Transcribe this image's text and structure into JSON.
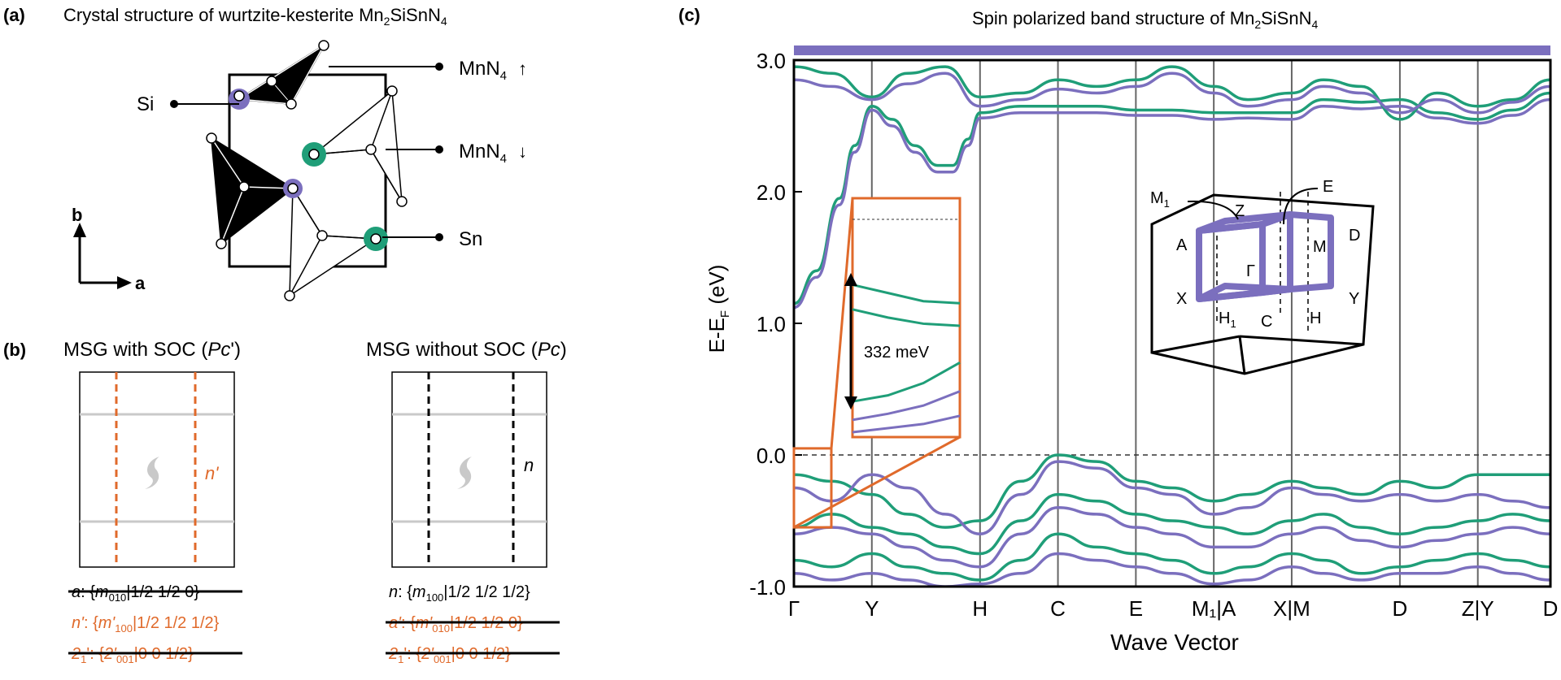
{
  "colors": {
    "up": "#1f9e78",
    "down": "#7b6fbe",
    "orange": "#e06a2b",
    "grey": "#c9c9c9",
    "black": "#000000"
  },
  "panel_a": {
    "label": "(a)",
    "title": "Crystal structure of wurtzite-kesterite Mn",
    "title_sub": "2",
    "title_end": "SiSnN",
    "title_sub2": "4",
    "labels": {
      "mn_up": "MnN",
      "mn_up_sub": "4",
      "mn_up_arrow": "↑",
      "mn_down": "MnN",
      "mn_down_sub": "4",
      "mn_down_arrow": "↓",
      "si": "Si",
      "sn": "Sn",
      "axis_b": "b",
      "axis_a": "a"
    }
  },
  "panel_b": {
    "label": "(b)",
    "left_title": "MSG with SOC (",
    "left_title_italic": "Pc",
    "left_title_end": "')",
    "right_title": "MSG without SOC (",
    "right_title_italic": "Pc",
    "right_title_end": ")",
    "left_plane_label": "n'",
    "right_plane_label": "n",
    "left_ops": [
      {
        "name": "a",
        "name_sub": "",
        "symbol": "m",
        "symbol_sub": "010",
        "translation": "|1/2 1/2 0}",
        "struck": true,
        "color": "black"
      },
      {
        "name": "n'",
        "name_sub": "",
        "symbol": "m'",
        "symbol_sub": "100",
        "translation": "|1/2 1/2 1/2}",
        "struck": false,
        "color": "orange"
      },
      {
        "name": "2",
        "name_sub": "1",
        "name_end": "'",
        "symbol": "2'",
        "symbol_sub": "001",
        "translation": "|0 0 1/2}",
        "struck": true,
        "color": "orange"
      }
    ],
    "right_ops": [
      {
        "name": "n",
        "name_sub": "",
        "symbol": "m",
        "symbol_sub": "100",
        "translation": "|1/2 1/2 1/2}",
        "struck": false,
        "color": "black"
      },
      {
        "name": "a'",
        "name_sub": "",
        "symbol": "m'",
        "symbol_sub": "010",
        "translation": "|1/2 1/2 0}",
        "struck": true,
        "color": "orange"
      },
      {
        "name": "2",
        "name_sub": "1",
        "name_end": "'",
        "symbol": "2'",
        "symbol_sub": "001",
        "translation": "|0 0 1/2}",
        "struck": true,
        "color": "orange"
      }
    ]
  },
  "panel_c": {
    "label": "(c)",
    "title": "Spin polarized band structure of Mn",
    "title_sub": "2",
    "title_end": "SiSnN",
    "title_sub2": "4",
    "inset_gap_label": "332 meV",
    "bz_labels": {
      "m1": "M",
      "m1_sub": "1",
      "z": "Z",
      "e": "E",
      "a": "A",
      "gamma": "Γ",
      "m": "M",
      "d": "D",
      "x": "X",
      "y": "Y",
      "h1": "H",
      "h1_sub": "1",
      "c": "C",
      "h": "H"
    }
  },
  "chart_data": {
    "type": "line",
    "title": "Spin polarized band structure of Mn2SiSnN4",
    "xlabel": "Wave Vector",
    "ylabel": "E-E",
    "ylabel_sub": "F",
    "ylabel_end": " (eV)",
    "ylim": [
      -1.0,
      3.0
    ],
    "yticks": [
      "3.0",
      "2.0",
      "1.0",
      "0.0",
      "-1.0"
    ],
    "ytick_values": [
      3.0,
      2.0,
      1.0,
      0.0,
      -1.0
    ],
    "x_ticks": [
      {
        "label": "Γ",
        "pos": 0.0
      },
      {
        "label": "Y",
        "pos": 0.103
      },
      {
        "label": "H",
        "pos": 0.246
      },
      {
        "label": "C",
        "pos": 0.349
      },
      {
        "label": "E",
        "pos": 0.452
      },
      {
        "label": "M₁|A",
        "pos": 0.555
      },
      {
        "label": "X|M",
        "pos": 0.658
      },
      {
        "label": "D",
        "pos": 0.801
      },
      {
        "label": "Z|Y",
        "pos": 0.904
      },
      {
        "label": "D",
        "pos": 1.0
      }
    ],
    "fermi_level": 0.0,
    "series": [
      {
        "spin": "up",
        "points": [
          [
            0,
            1.15
          ],
          [
            0.03,
            1.4
          ],
          [
            0.06,
            1.95
          ],
          [
            0.08,
            2.35
          ],
          [
            0.103,
            2.65
          ],
          [
            0.13,
            2.55
          ],
          [
            0.16,
            2.35
          ],
          [
            0.19,
            2.2
          ],
          [
            0.21,
            2.2
          ],
          [
            0.23,
            2.4
          ],
          [
            0.246,
            2.6
          ],
          [
            0.3,
            2.65
          ],
          [
            0.349,
            2.65
          ],
          [
            0.4,
            2.65
          ],
          [
            0.452,
            2.62
          ],
          [
            0.5,
            2.62
          ],
          [
            0.555,
            2.6
          ],
          [
            0.6,
            2.6
          ],
          [
            0.658,
            2.6
          ],
          [
            0.7,
            2.7
          ],
          [
            0.75,
            2.68
          ],
          [
            0.801,
            2.7
          ],
          [
            0.85,
            2.6
          ],
          [
            0.904,
            2.55
          ],
          [
            0.95,
            2.62
          ],
          [
            1.0,
            2.75
          ]
        ]
      },
      {
        "spin": "down",
        "points": [
          [
            0,
            1.12
          ],
          [
            0.03,
            1.35
          ],
          [
            0.06,
            1.9
          ],
          [
            0.08,
            2.3
          ],
          [
            0.103,
            2.62
          ],
          [
            0.13,
            2.5
          ],
          [
            0.16,
            2.3
          ],
          [
            0.19,
            2.15
          ],
          [
            0.21,
            2.15
          ],
          [
            0.23,
            2.35
          ],
          [
            0.246,
            2.56
          ],
          [
            0.3,
            2.6
          ],
          [
            0.349,
            2.6
          ],
          [
            0.4,
            2.6
          ],
          [
            0.452,
            2.58
          ],
          [
            0.5,
            2.58
          ],
          [
            0.555,
            2.55
          ],
          [
            0.6,
            2.56
          ],
          [
            0.658,
            2.55
          ],
          [
            0.7,
            2.65
          ],
          [
            0.75,
            2.63
          ],
          [
            0.801,
            2.65
          ],
          [
            0.85,
            2.56
          ],
          [
            0.904,
            2.52
          ],
          [
            0.95,
            2.58
          ],
          [
            1.0,
            2.7
          ]
        ]
      },
      {
        "spin": "up",
        "points": [
          [
            0,
            2.95
          ],
          [
            0.05,
            2.9
          ],
          [
            0.103,
            2.72
          ],
          [
            0.15,
            2.9
          ],
          [
            0.2,
            2.95
          ],
          [
            0.246,
            2.72
          ],
          [
            0.3,
            2.75
          ],
          [
            0.349,
            2.85
          ],
          [
            0.4,
            2.8
          ],
          [
            0.452,
            2.85
          ],
          [
            0.5,
            2.95
          ],
          [
            0.555,
            2.8
          ],
          [
            0.6,
            2.7
          ],
          [
            0.658,
            2.75
          ],
          [
            0.7,
            2.85
          ],
          [
            0.75,
            2.8
          ],
          [
            0.801,
            2.55
          ],
          [
            0.85,
            2.75
          ],
          [
            0.904,
            2.65
          ],
          [
            0.95,
            2.7
          ],
          [
            1.0,
            2.85
          ]
        ]
      },
      {
        "spin": "down",
        "points": [
          [
            0,
            2.85
          ],
          [
            0.05,
            2.8
          ],
          [
            0.103,
            2.7
          ],
          [
            0.15,
            2.82
          ],
          [
            0.2,
            2.9
          ],
          [
            0.246,
            2.65
          ],
          [
            0.3,
            2.7
          ],
          [
            0.349,
            2.78
          ],
          [
            0.4,
            2.75
          ],
          [
            0.452,
            2.8
          ],
          [
            0.5,
            2.9
          ],
          [
            0.555,
            2.75
          ],
          [
            0.6,
            2.65
          ],
          [
            0.658,
            2.7
          ],
          [
            0.7,
            2.8
          ],
          [
            0.75,
            2.75
          ],
          [
            0.801,
            2.6
          ],
          [
            0.85,
            2.7
          ],
          [
            0.904,
            2.6
          ],
          [
            0.95,
            2.68
          ],
          [
            1.0,
            2.8
          ]
        ]
      },
      {
        "spin": "up",
        "points": [
          [
            0,
            -0.15
          ],
          [
            0.05,
            -0.2
          ],
          [
            0.103,
            -0.3
          ],
          [
            0.15,
            -0.45
          ],
          [
            0.2,
            -0.55
          ],
          [
            0.246,
            -0.5
          ],
          [
            0.3,
            -0.2
          ],
          [
            0.349,
            0.0
          ],
          [
            0.4,
            -0.05
          ],
          [
            0.452,
            -0.2
          ],
          [
            0.5,
            -0.25
          ],
          [
            0.555,
            -0.35
          ],
          [
            0.6,
            -0.3
          ],
          [
            0.658,
            -0.2
          ],
          [
            0.7,
            -0.25
          ],
          [
            0.75,
            -0.3
          ],
          [
            0.801,
            -0.2
          ],
          [
            0.85,
            -0.25
          ],
          [
            0.904,
            -0.15
          ],
          [
            0.95,
            -0.15
          ],
          [
            1.0,
            -0.15
          ]
        ]
      },
      {
        "spin": "down",
        "points": [
          [
            0,
            -0.25
          ],
          [
            0.05,
            -0.35
          ],
          [
            0.103,
            -0.15
          ],
          [
            0.15,
            -0.25
          ],
          [
            0.2,
            -0.45
          ],
          [
            0.246,
            -0.6
          ],
          [
            0.3,
            -0.3
          ],
          [
            0.349,
            -0.05
          ],
          [
            0.4,
            -0.1
          ],
          [
            0.452,
            -0.25
          ],
          [
            0.5,
            -0.3
          ],
          [
            0.555,
            -0.45
          ],
          [
            0.6,
            -0.4
          ],
          [
            0.658,
            -0.25
          ],
          [
            0.7,
            -0.3
          ],
          [
            0.75,
            -0.35
          ],
          [
            0.801,
            -0.3
          ],
          [
            0.85,
            -0.35
          ],
          [
            0.904,
            -0.3
          ],
          [
            0.95,
            -0.35
          ],
          [
            1.0,
            -0.4
          ]
        ]
      },
      {
        "spin": "up",
        "points": [
          [
            0,
            -0.55
          ],
          [
            0.05,
            -0.45
          ],
          [
            0.103,
            -0.55
          ],
          [
            0.15,
            -0.6
          ],
          [
            0.2,
            -0.7
          ],
          [
            0.246,
            -0.75
          ],
          [
            0.3,
            -0.5
          ],
          [
            0.349,
            -0.3
          ],
          [
            0.4,
            -0.35
          ],
          [
            0.452,
            -0.45
          ],
          [
            0.5,
            -0.5
          ],
          [
            0.555,
            -0.55
          ],
          [
            0.6,
            -0.6
          ],
          [
            0.658,
            -0.5
          ],
          [
            0.7,
            -0.45
          ],
          [
            0.75,
            -0.55
          ],
          [
            0.801,
            -0.6
          ],
          [
            0.85,
            -0.55
          ],
          [
            0.904,
            -0.5
          ],
          [
            0.95,
            -0.45
          ],
          [
            1.0,
            -0.5
          ]
        ]
      },
      {
        "spin": "down",
        "points": [
          [
            0,
            -0.6
          ],
          [
            0.05,
            -0.55
          ],
          [
            0.103,
            -0.6
          ],
          [
            0.15,
            -0.7
          ],
          [
            0.2,
            -0.8
          ],
          [
            0.246,
            -0.85
          ],
          [
            0.3,
            -0.6
          ],
          [
            0.349,
            -0.4
          ],
          [
            0.4,
            -0.45
          ],
          [
            0.452,
            -0.55
          ],
          [
            0.5,
            -0.6
          ],
          [
            0.555,
            -0.7
          ],
          [
            0.6,
            -0.7
          ],
          [
            0.658,
            -0.6
          ],
          [
            0.7,
            -0.55
          ],
          [
            0.75,
            -0.65
          ],
          [
            0.801,
            -0.7
          ],
          [
            0.85,
            -0.65
          ],
          [
            0.904,
            -0.6
          ],
          [
            0.95,
            -0.55
          ],
          [
            1.0,
            -0.6
          ]
        ]
      },
      {
        "spin": "up",
        "points": [
          [
            0,
            -0.8
          ],
          [
            0.05,
            -0.85
          ],
          [
            0.103,
            -0.75
          ],
          [
            0.15,
            -0.85
          ],
          [
            0.2,
            -0.9
          ],
          [
            0.246,
            -0.95
          ],
          [
            0.3,
            -0.8
          ],
          [
            0.349,
            -0.6
          ],
          [
            0.4,
            -0.7
          ],
          [
            0.452,
            -0.75
          ],
          [
            0.5,
            -0.8
          ],
          [
            0.555,
            -0.9
          ],
          [
            0.6,
            -0.85
          ],
          [
            0.658,
            -0.75
          ],
          [
            0.7,
            -0.8
          ],
          [
            0.75,
            -0.9
          ],
          [
            0.801,
            -0.85
          ],
          [
            0.85,
            -0.8
          ],
          [
            0.904,
            -0.75
          ],
          [
            0.95,
            -0.8
          ],
          [
            1.0,
            -0.85
          ]
        ]
      },
      {
        "spin": "down",
        "points": [
          [
            0,
            -0.9
          ],
          [
            0.05,
            -0.95
          ],
          [
            0.103,
            -0.9
          ],
          [
            0.15,
            -0.95
          ],
          [
            0.2,
            -1.0
          ],
          [
            0.246,
            -0.98
          ],
          [
            0.3,
            -0.9
          ],
          [
            0.349,
            -0.75
          ],
          [
            0.4,
            -0.8
          ],
          [
            0.452,
            -0.85
          ],
          [
            0.5,
            -0.9
          ],
          [
            0.555,
            -0.98
          ],
          [
            0.6,
            -0.95
          ],
          [
            0.658,
            -0.85
          ],
          [
            0.7,
            -0.9
          ],
          [
            0.75,
            -0.95
          ],
          [
            0.801,
            -0.9
          ],
          [
            0.85,
            -0.9
          ],
          [
            0.904,
            -0.85
          ],
          [
            0.95,
            -0.9
          ],
          [
            1.0,
            -0.95
          ]
        ]
      }
    ],
    "inset_series": [
      {
        "spin": "up",
        "points": [
          [
            0,
            0.72
          ],
          [
            0.33,
            0.68
          ],
          [
            0.66,
            0.64
          ],
          [
            1,
            0.63
          ]
        ]
      },
      {
        "spin": "up",
        "points": [
          [
            0,
            0.6
          ],
          [
            0.33,
            0.56
          ],
          [
            0.66,
            0.53
          ],
          [
            1,
            0.52
          ]
        ]
      },
      {
        "spin": "up",
        "points": [
          [
            0,
            0.15
          ],
          [
            0.33,
            0.18
          ],
          [
            0.66,
            0.24
          ],
          [
            1,
            0.34
          ]
        ]
      },
      {
        "spin": "down",
        "points": [
          [
            0,
            0.06
          ],
          [
            0.33,
            0.09
          ],
          [
            0.66,
            0.13
          ],
          [
            1,
            0.2
          ]
        ]
      },
      {
        "spin": "down",
        "points": [
          [
            0,
            0.0
          ],
          [
            0.33,
            0.02
          ],
          [
            0.66,
            0.04
          ],
          [
            1,
            0.08
          ]
        ]
      }
    ]
  }
}
